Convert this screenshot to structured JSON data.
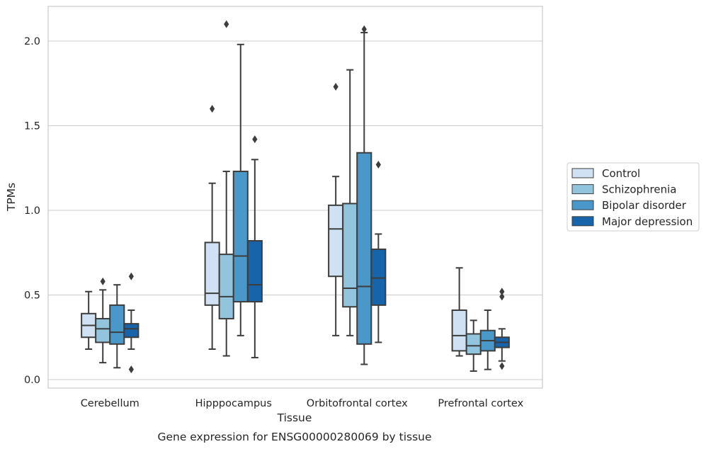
{
  "chart_data": {
    "type": "box",
    "xlabel": "Tissue",
    "ylabel": "TPMs",
    "caption": "Gene expression for ENSG00000280069 by tissue",
    "ylim": [
      -0.05,
      2.21
    ],
    "yticks": [
      0.0,
      0.5,
      1.0,
      1.5,
      2.0
    ],
    "ytick_labels": [
      "0.0",
      "0.5",
      "1.0",
      "1.5",
      "2.0"
    ],
    "grid": "horizontal",
    "legend_placement": "right",
    "categories": [
      "Cerebellum",
      "Hipppocampus",
      "Orbitofrontal cortex",
      "Prefrontal cortex"
    ],
    "series": [
      {
        "name": "Control",
        "color": "#cfe1f2",
        "boxes": [
          {
            "whisker_low": 0.18,
            "q1": 0.25,
            "median": 0.32,
            "q3": 0.39,
            "whisker_high": 0.52,
            "outliers": []
          },
          {
            "whisker_low": 0.18,
            "q1": 0.44,
            "median": 0.51,
            "q3": 0.81,
            "whisker_high": 1.16,
            "outliers": [
              1.6
            ]
          },
          {
            "whisker_low": 0.26,
            "q1": 0.61,
            "median": 0.89,
            "q3": 1.03,
            "whisker_high": 1.2,
            "outliers": [
              1.73
            ]
          },
          {
            "whisker_low": 0.14,
            "q1": 0.17,
            "median": 0.26,
            "q3": 0.41,
            "whisker_high": 0.66,
            "outliers": []
          }
        ]
      },
      {
        "name": "Schizophrenia",
        "color": "#93c4de",
        "boxes": [
          {
            "whisker_low": 0.1,
            "q1": 0.22,
            "median": 0.3,
            "q3": 0.36,
            "whisker_high": 0.53,
            "outliers": [
              0.58
            ]
          },
          {
            "whisker_low": 0.14,
            "q1": 0.36,
            "median": 0.49,
            "q3": 0.74,
            "whisker_high": 1.23,
            "outliers": [
              2.1
            ]
          },
          {
            "whisker_low": 0.26,
            "q1": 0.43,
            "median": 0.54,
            "q3": 1.04,
            "whisker_high": 1.83,
            "outliers": []
          },
          {
            "whisker_low": 0.05,
            "q1": 0.15,
            "median": 0.2,
            "q3": 0.27,
            "whisker_high": 0.35,
            "outliers": []
          }
        ]
      },
      {
        "name": "Bipolar disorder",
        "color": "#4a98c9",
        "boxes": [
          {
            "whisker_low": 0.07,
            "q1": 0.21,
            "median": 0.28,
            "q3": 0.44,
            "whisker_high": 0.56,
            "outliers": []
          },
          {
            "whisker_low": 0.26,
            "q1": 0.46,
            "median": 0.73,
            "q3": 1.23,
            "whisker_high": 1.98,
            "outliers": []
          },
          {
            "whisker_low": 0.09,
            "q1": 0.21,
            "median": 0.55,
            "q3": 1.34,
            "whisker_high": 2.05,
            "outliers": [
              2.07
            ]
          },
          {
            "whisker_low": 0.06,
            "q1": 0.17,
            "median": 0.23,
            "q3": 0.29,
            "whisker_high": 0.41,
            "outliers": []
          }
        ]
      },
      {
        "name": "Major depression",
        "color": "#1764ab",
        "boxes": [
          {
            "whisker_low": 0.18,
            "q1": 0.25,
            "median": 0.3,
            "q3": 0.33,
            "whisker_high": 0.41,
            "outliers": [
              0.61,
              0.06
            ]
          },
          {
            "whisker_low": 0.13,
            "q1": 0.46,
            "median": 0.56,
            "q3": 0.82,
            "whisker_high": 1.3,
            "outliers": [
              1.42
            ]
          },
          {
            "whisker_low": 0.22,
            "q1": 0.44,
            "median": 0.6,
            "q3": 0.77,
            "whisker_high": 0.86,
            "outliers": [
              1.27
            ]
          },
          {
            "whisker_low": 0.11,
            "q1": 0.19,
            "median": 0.22,
            "q3": 0.25,
            "whisker_high": 0.3,
            "outliers": [
              0.52,
              0.49,
              0.08
            ]
          }
        ]
      }
    ]
  }
}
